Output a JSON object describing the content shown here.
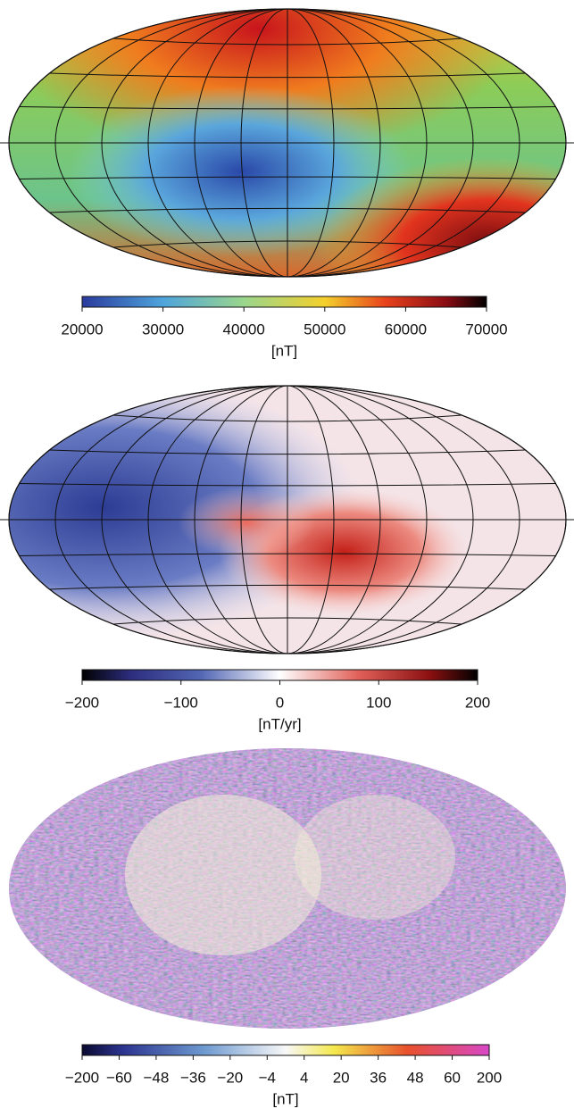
{
  "panels": [
    {
      "colorbar": {
        "scale": "linear",
        "lim": [
          20000,
          70000
        ],
        "ticks": [
          20000,
          30000,
          40000,
          50000,
          60000,
          70000
        ]
      },
      "unit": "[nT]"
    },
    {
      "colorbar": {
        "scale": "linear",
        "lim": [
          -200,
          200
        ],
        "ticks": [
          {
            "value": -200,
            "label": "−200"
          },
          {
            "value": -100,
            "label": "−100"
          },
          0,
          100,
          200
        ]
      },
      "unit": "[nT/yr]"
    },
    {
      "colorbar": {
        "scale": "discrete",
        "ticks": [
          {
            "value": -200,
            "label": "−200"
          },
          {
            "value": -60,
            "label": "−60"
          },
          {
            "value": -48,
            "label": "−48"
          },
          {
            "value": -36,
            "label": "−36"
          },
          {
            "value": -20,
            "label": "−20"
          },
          {
            "value": -4,
            "label": "−4"
          },
          4,
          20,
          36,
          48,
          60,
          200
        ]
      },
      "unit": "[nT]"
    }
  ]
}
